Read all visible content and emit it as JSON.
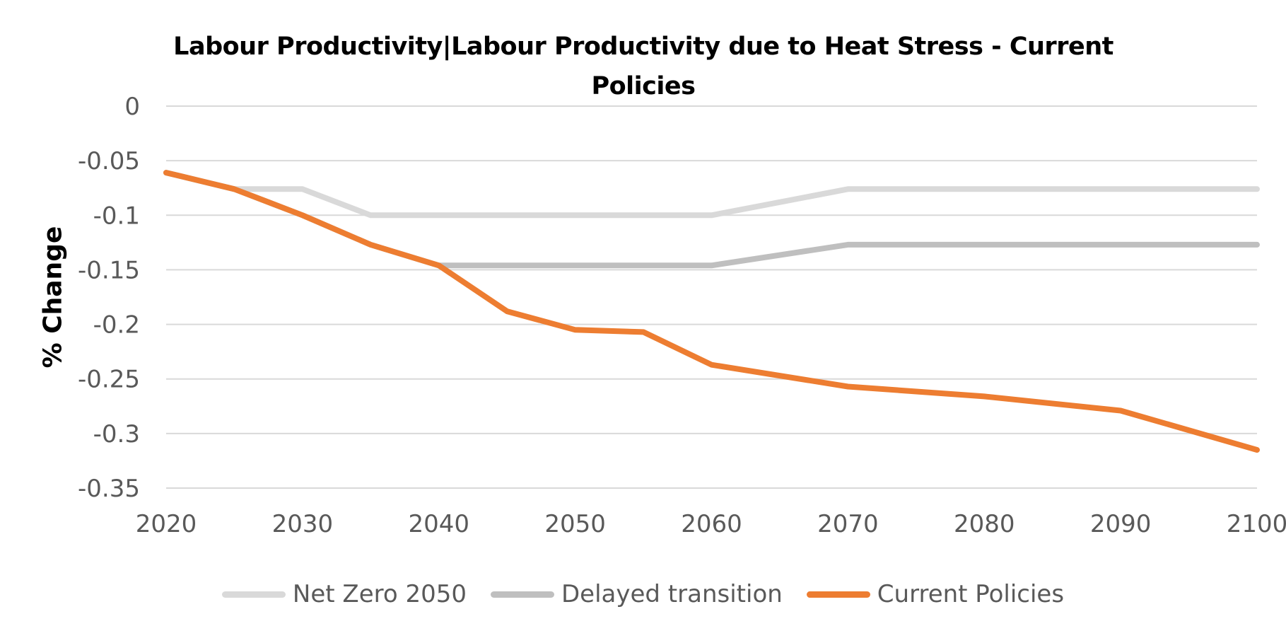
{
  "chart_data": {
    "type": "line",
    "title": "Labour Productivity|Labour Productivity due to Heat Stress - Current Policies",
    "xlabel": "",
    "ylabel": "% Change",
    "x_ticks": [
      "2020",
      "2030",
      "2040",
      "2050",
      "2060",
      "2070",
      "2080",
      "2090",
      "2100"
    ],
    "y_ticks": [
      "0",
      "-0.05",
      "-0.1",
      "-0.15",
      "-0.2",
      "-0.25",
      "-0.3",
      "-0.35"
    ],
    "xlim": [
      2020,
      2100
    ],
    "ylim": [
      -0.35,
      0
    ],
    "grid": true,
    "legend_position": "bottom",
    "series": [
      {
        "name": "Net Zero 2050",
        "color": "#d9d9d9",
        "x": [
          2020,
          2025,
          2030,
          2035,
          2040,
          2045,
          2050,
          2055,
          2060,
          2070,
          2080,
          2090,
          2100
        ],
        "values": [
          -0.061,
          -0.076,
          -0.076,
          -0.1,
          -0.1,
          -0.1,
          -0.1,
          -0.1,
          -0.1,
          -0.076,
          -0.076,
          -0.076,
          -0.076
        ]
      },
      {
        "name": "Delayed transition",
        "color": "#bfbfbf",
        "x": [
          2020,
          2025,
          2030,
          2035,
          2040,
          2045,
          2050,
          2055,
          2060,
          2070,
          2080,
          2090,
          2100
        ],
        "values": [
          -0.061,
          -0.076,
          -0.1,
          -0.127,
          -0.146,
          -0.146,
          -0.146,
          -0.146,
          -0.146,
          -0.127,
          -0.127,
          -0.127,
          -0.127
        ]
      },
      {
        "name": "Current Policies",
        "color": "#ed7d31",
        "x": [
          2020,
          2025,
          2030,
          2035,
          2040,
          2045,
          2050,
          2055,
          2060,
          2070,
          2080,
          2090,
          2100
        ],
        "values": [
          -0.061,
          -0.076,
          -0.1,
          -0.127,
          -0.146,
          -0.188,
          -0.205,
          -0.207,
          -0.237,
          -0.257,
          -0.266,
          -0.279,
          -0.315
        ]
      }
    ]
  }
}
